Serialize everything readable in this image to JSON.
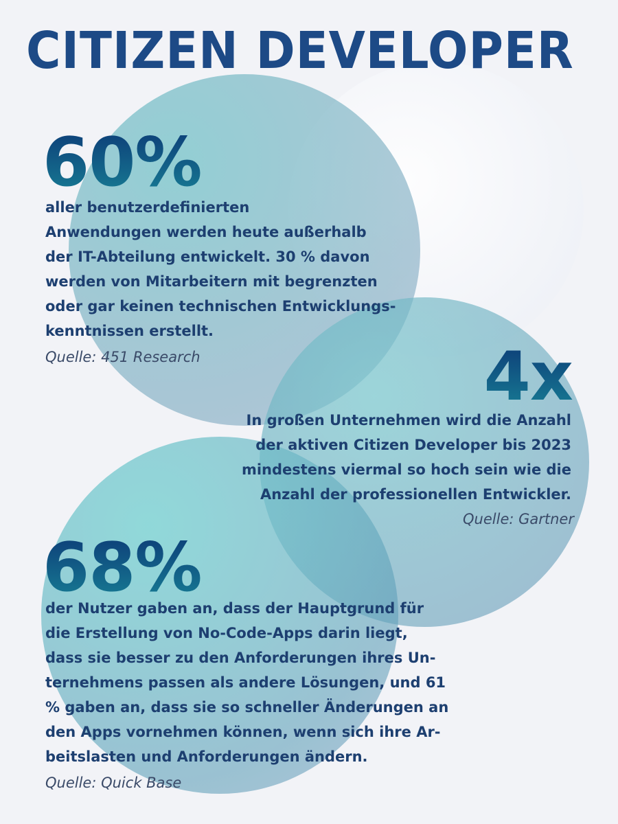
{
  "title": "CITIZEN DEVELOPER",
  "stats": [
    {
      "value": "60%",
      "lines": [
        "aller benutzerdefinierten",
        "Anwendungen werden heute außerhalb",
        "der IT-Abteilung entwickelt. 30 % davon",
        "werden von Mitarbeitern mit begrenzten",
        "oder gar keinen technischen Entwicklungs-",
        "kenntnissen erstellt."
      ],
      "source": "Quelle: 451 Research"
    },
    {
      "value": "4x",
      "lines": [
        "In großen Unternehmen wird die Anzahl",
        "der aktiven Citizen Developer bis 2023",
        "mindestens viermal so hoch sein wie die",
        "Anzahl der professionellen Entwickler."
      ],
      "source": "Quelle: Gartner"
    },
    {
      "value": "68%",
      "lines": [
        "der Nutzer gaben an, dass der Hauptgrund für",
        "die Erstellung von No-Code-Apps darin liegt,",
        "dass sie besser zu den Anforderungen ihres Un-",
        "ternehmens passen als andere Lösungen, und 61",
        "% gaben an, dass sie so schneller Änderungen an",
        "den Apps vornehmen können, wenn sich ihre Ar-",
        "beitslasten und Anforderungen ändern."
      ],
      "source": "Quelle: Quick Base"
    }
  ],
  "colors": {
    "title": "#1d4a86",
    "text": "#1d3f70",
    "stat_gradient_top": "#0d3e78",
    "stat_gradient_bottom": "#177c94",
    "background": "#f2f3f7"
  }
}
